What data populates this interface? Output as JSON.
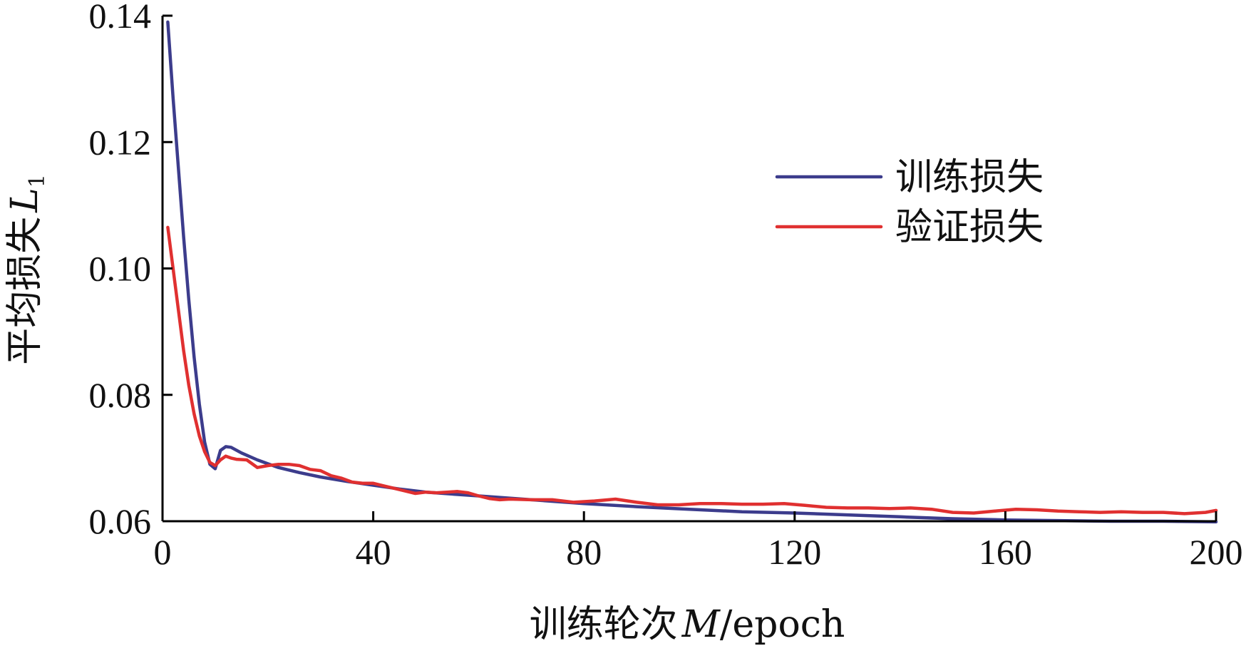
{
  "chart_data": {
    "type": "line",
    "title": "",
    "xlabel": {
      "prefix": "训练轮次",
      "variable": "M",
      "suffix": "/epoch"
    },
    "ylabel": {
      "prefix": "平均损失",
      "variable": "L",
      "subscript": "1"
    },
    "xlim": [
      0,
      200
    ],
    "ylim": [
      0.06,
      0.14
    ],
    "xticks": [
      0,
      40,
      80,
      120,
      160,
      200
    ],
    "xtick_labels": [
      "0",
      "40",
      "80",
      "120",
      "160",
      "200"
    ],
    "yticks": [
      0.06,
      0.08,
      0.1,
      0.12,
      0.14
    ],
    "ytick_labels": [
      "0.06",
      "0.08",
      "0.10",
      "0.12",
      "0.14"
    ],
    "grid": false,
    "legend_position": "top-right",
    "series": [
      {
        "name": "训练损失",
        "color": "#3c3c8c",
        "x": [
          1,
          2,
          3,
          4,
          5,
          6,
          7,
          8,
          9,
          10,
          11,
          12,
          13,
          15,
          18,
          22,
          26,
          30,
          35,
          40,
          45,
          50,
          55,
          60,
          70,
          80,
          90,
          100,
          110,
          120,
          130,
          140,
          150,
          160,
          170,
          180,
          190,
          200
        ],
        "y": [
          0.139,
          0.127,
          0.116,
          0.105,
          0.095,
          0.086,
          0.0785,
          0.0725,
          0.069,
          0.0683,
          0.0712,
          0.0718,
          0.0717,
          0.0708,
          0.0697,
          0.0685,
          0.0677,
          0.067,
          0.0663,
          0.0657,
          0.0651,
          0.0646,
          0.0643,
          0.064,
          0.0634,
          0.0628,
          0.0623,
          0.0619,
          0.0615,
          0.0613,
          0.061,
          0.0607,
          0.0604,
          0.0602,
          0.0601,
          0.06,
          0.06,
          0.0599
        ]
      },
      {
        "name": "验证损失",
        "color": "#e03030",
        "x": [
          1,
          2,
          3,
          4,
          5,
          6,
          7,
          8,
          9,
          10,
          11,
          12,
          13,
          14,
          16,
          18,
          20,
          22,
          24,
          26,
          28,
          30,
          32,
          34,
          36,
          38,
          40,
          42,
          44,
          46,
          48,
          50,
          52,
          54,
          56,
          58,
          60,
          62,
          64,
          66,
          70,
          74,
          78,
          82,
          86,
          90,
          94,
          98,
          102,
          106,
          110,
          114,
          118,
          122,
          126,
          130,
          134,
          138,
          142,
          146,
          150,
          154,
          158,
          162,
          166,
          170,
          174,
          178,
          182,
          186,
          190,
          194,
          198,
          200
        ],
        "y": [
          0.1065,
          0.1,
          0.0935,
          0.087,
          0.0815,
          0.077,
          0.0735,
          0.071,
          0.0693,
          0.0688,
          0.0697,
          0.0703,
          0.07,
          0.0698,
          0.0697,
          0.0685,
          0.0688,
          0.069,
          0.069,
          0.0688,
          0.0682,
          0.068,
          0.0672,
          0.0668,
          0.0662,
          0.066,
          0.066,
          0.0656,
          0.0652,
          0.0648,
          0.0644,
          0.0646,
          0.0645,
          0.0646,
          0.0647,
          0.0645,
          0.064,
          0.0636,
          0.0634,
          0.0635,
          0.0634,
          0.0634,
          0.063,
          0.0632,
          0.0635,
          0.063,
          0.0626,
          0.0626,
          0.0628,
          0.0628,
          0.0627,
          0.0627,
          0.0628,
          0.0625,
          0.0622,
          0.0621,
          0.0621,
          0.062,
          0.0621,
          0.0619,
          0.0614,
          0.0613,
          0.0616,
          0.0619,
          0.0618,
          0.0616,
          0.0615,
          0.0614,
          0.0615,
          0.0614,
          0.0614,
          0.0612,
          0.0614,
          0.0617
        ]
      }
    ]
  }
}
